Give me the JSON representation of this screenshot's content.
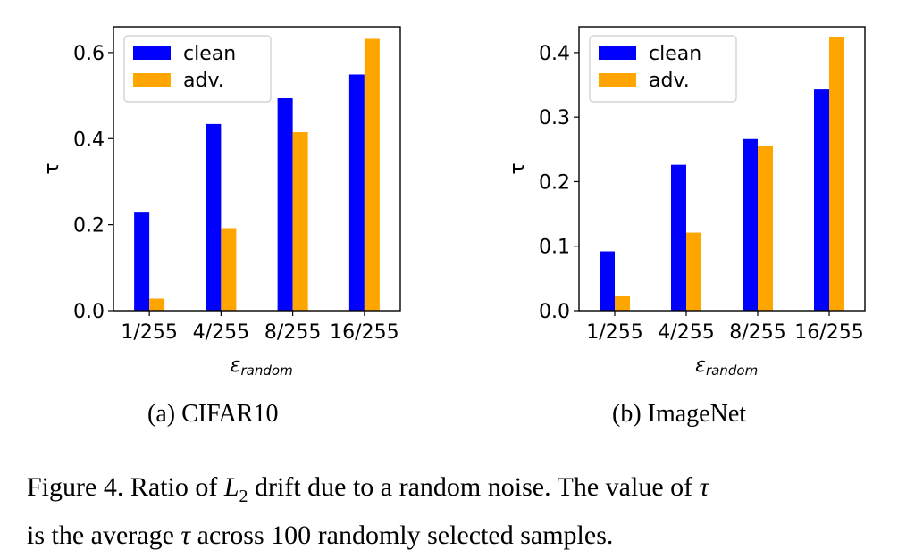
{
  "chart_data": [
    {
      "type": "bar",
      "categories": [
        "1/255",
        "4/255",
        "8/255",
        "16/255"
      ],
      "series": [
        {
          "name": "clean",
          "color": "#0000ff",
          "values": [
            0.228,
            0.434,
            0.494,
            0.549
          ]
        },
        {
          "name": "adv.",
          "color": "#ffa500",
          "values": [
            0.028,
            0.192,
            0.415,
            0.632
          ]
        }
      ],
      "ylim": [
        0,
        0.66
      ],
      "yticks": [
        "0.0",
        "0.2",
        "0.4",
        "0.6"
      ],
      "ytick_values": [
        0,
        0.2,
        0.4,
        0.6
      ],
      "ylabel": "τ",
      "xlabel_main": "ε",
      "xlabel_sub": "random",
      "legend_position": "top-left",
      "subcaption": "(a) CIFAR10"
    },
    {
      "type": "bar",
      "categories": [
        "1/255",
        "4/255",
        "8/255",
        "16/255"
      ],
      "series": [
        {
          "name": "clean",
          "color": "#0000ff",
          "values": [
            0.092,
            0.226,
            0.266,
            0.343
          ]
        },
        {
          "name": "adv.",
          "color": "#ffa500",
          "values": [
            0.023,
            0.121,
            0.256,
            0.424
          ]
        }
      ],
      "ylim": [
        0,
        0.44
      ],
      "yticks": [
        "0.0",
        "0.1",
        "0.2",
        "0.3",
        "0.4"
      ],
      "ytick_values": [
        0,
        0.1,
        0.2,
        0.3,
        0.4
      ],
      "ylabel": "τ",
      "xlabel_main": "ε",
      "xlabel_sub": "random",
      "legend_position": "top-left",
      "subcaption": "(b) ImageNet"
    }
  ],
  "caption": {
    "prefix": "Figure 4. Ratio of ",
    "math_L": "L",
    "math_sub": "2",
    "mid": " drift due to a random noise. The value of ",
    "tau1": "τ",
    "line2_start": "is the average ",
    "tau2": "τ",
    "line2_end": " across 100 randomly selected samples."
  }
}
